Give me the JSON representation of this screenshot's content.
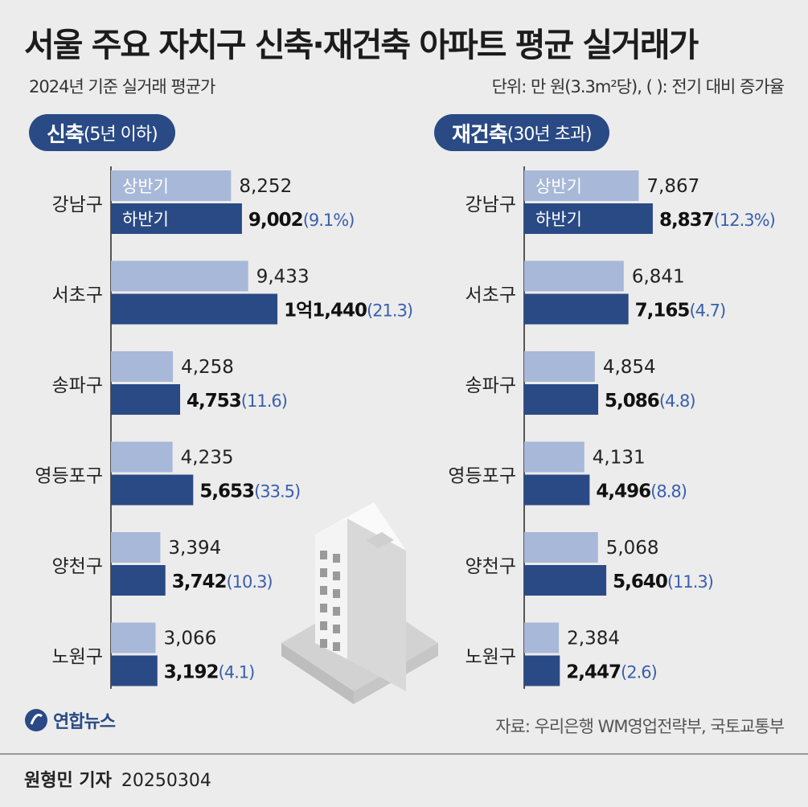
{
  "title": "서울 주요 자치구 신축·재건축 아파트 평균 실거래가",
  "subtitle": "2024년 기준 실거래 평균가",
  "unit_note": "단위: 만 원(3.3m²당), ( ): 전기 대비 증가율",
  "source": "자료: 우리은행 WM영업전략부, 국토교통부",
  "logo_text": "연합뉴스",
  "reporter": "원형민 기자",
  "date": "20250304",
  "colors": {
    "h1": "#a8b8d8",
    "h2": "#2a4a85",
    "pct": "#3a5fae",
    "pill": "#2a4a85"
  },
  "chart_data": [
    {
      "type": "bar",
      "panel_label_bold": "신축",
      "panel_label_sub": "(5년 이하)",
      "categories": [
        "강남구",
        "서초구",
        "송파구",
        "영등포구",
        "양천구",
        "노원구"
      ],
      "series": [
        {
          "name": "상반기",
          "values": [
            8252,
            9433,
            4258,
            4235,
            3394,
            3066
          ]
        },
        {
          "name": "하반기",
          "values": [
            9002,
            11440,
            4753,
            5653,
            3742,
            3192
          ]
        }
      ],
      "labels_h1": [
        "8,252",
        "9,433",
        "4,258",
        "4,235",
        "3,394",
        "3,066"
      ],
      "labels_h2": [
        "9,002",
        "1억1,440",
        "4,753",
        "5,653",
        "3,742",
        "3,192"
      ],
      "growth": [
        "(9.1%)",
        "(21.3)",
        "(11.6)",
        "(33.5)",
        "(10.3)",
        "(4.1)"
      ]
    },
    {
      "type": "bar",
      "panel_label_bold": "재건축",
      "panel_label_sub": "(30년 초과)",
      "categories": [
        "강남구",
        "서초구",
        "송파구",
        "영등포구",
        "양천구",
        "노원구"
      ],
      "series": [
        {
          "name": "상반기",
          "values": [
            7867,
            6841,
            4854,
            4131,
            5068,
            2384
          ]
        },
        {
          "name": "하반기",
          "values": [
            8837,
            7165,
            5086,
            4496,
            5640,
            2447
          ]
        }
      ],
      "labels_h1": [
        "7,867",
        "6,841",
        "4,854",
        "4,131",
        "5,068",
        "2,384"
      ],
      "labels_h2": [
        "8,837",
        "7,165",
        "5,086",
        "4,496",
        "5,640",
        "2,447"
      ],
      "growth": [
        "(12.3%)",
        "(4.7)",
        "(4.8)",
        "(8.8)",
        "(11.3)",
        "(2.6)"
      ]
    }
  ]
}
